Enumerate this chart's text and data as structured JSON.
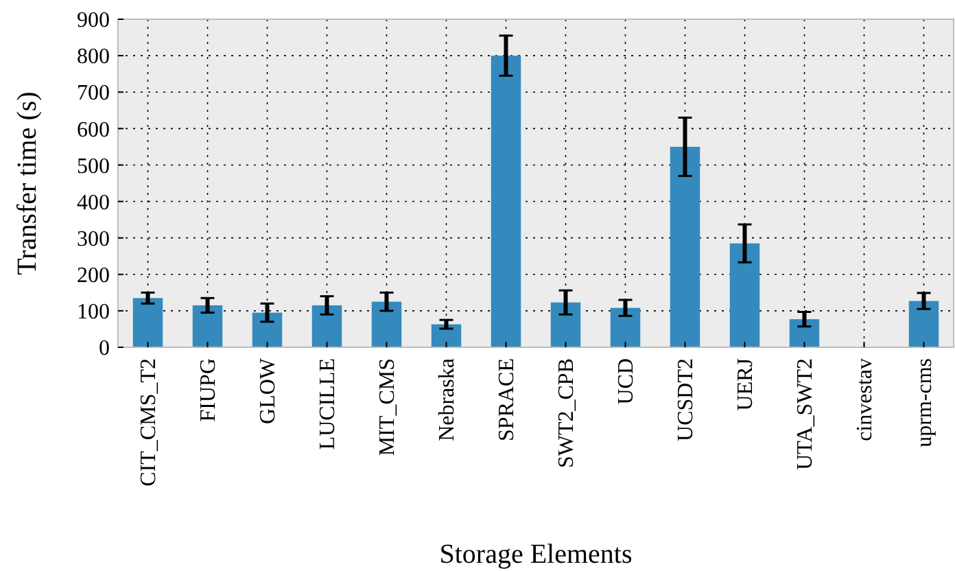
{
  "chart_data": {
    "type": "bar",
    "xlabel": "Storage Elements",
    "ylabel": "Transfer time (s)",
    "categories": [
      "CIT_CMS_T2",
      "FIUPG",
      "GLOW",
      "LUCILLE",
      "MIT_CMS",
      "Nebraska",
      "SPRACE",
      "SWT2_CPB",
      "UCD",
      "UCSDT2",
      "UERJ",
      "UTA_SWT2",
      "cinvestav",
      "uprm-cms"
    ],
    "values": [
      135,
      115,
      95,
      115,
      125,
      63,
      800,
      123,
      108,
      550,
      285,
      77,
      null,
      127
    ],
    "errors": [
      15,
      20,
      25,
      25,
      25,
      12,
      55,
      33,
      22,
      80,
      52,
      20,
      null,
      22
    ],
    "color": "#348abd",
    "ylim": [
      0,
      900
    ],
    "yticks": [
      0,
      100,
      200,
      300,
      400,
      500,
      600,
      700,
      800,
      900
    ],
    "grid": true
  }
}
